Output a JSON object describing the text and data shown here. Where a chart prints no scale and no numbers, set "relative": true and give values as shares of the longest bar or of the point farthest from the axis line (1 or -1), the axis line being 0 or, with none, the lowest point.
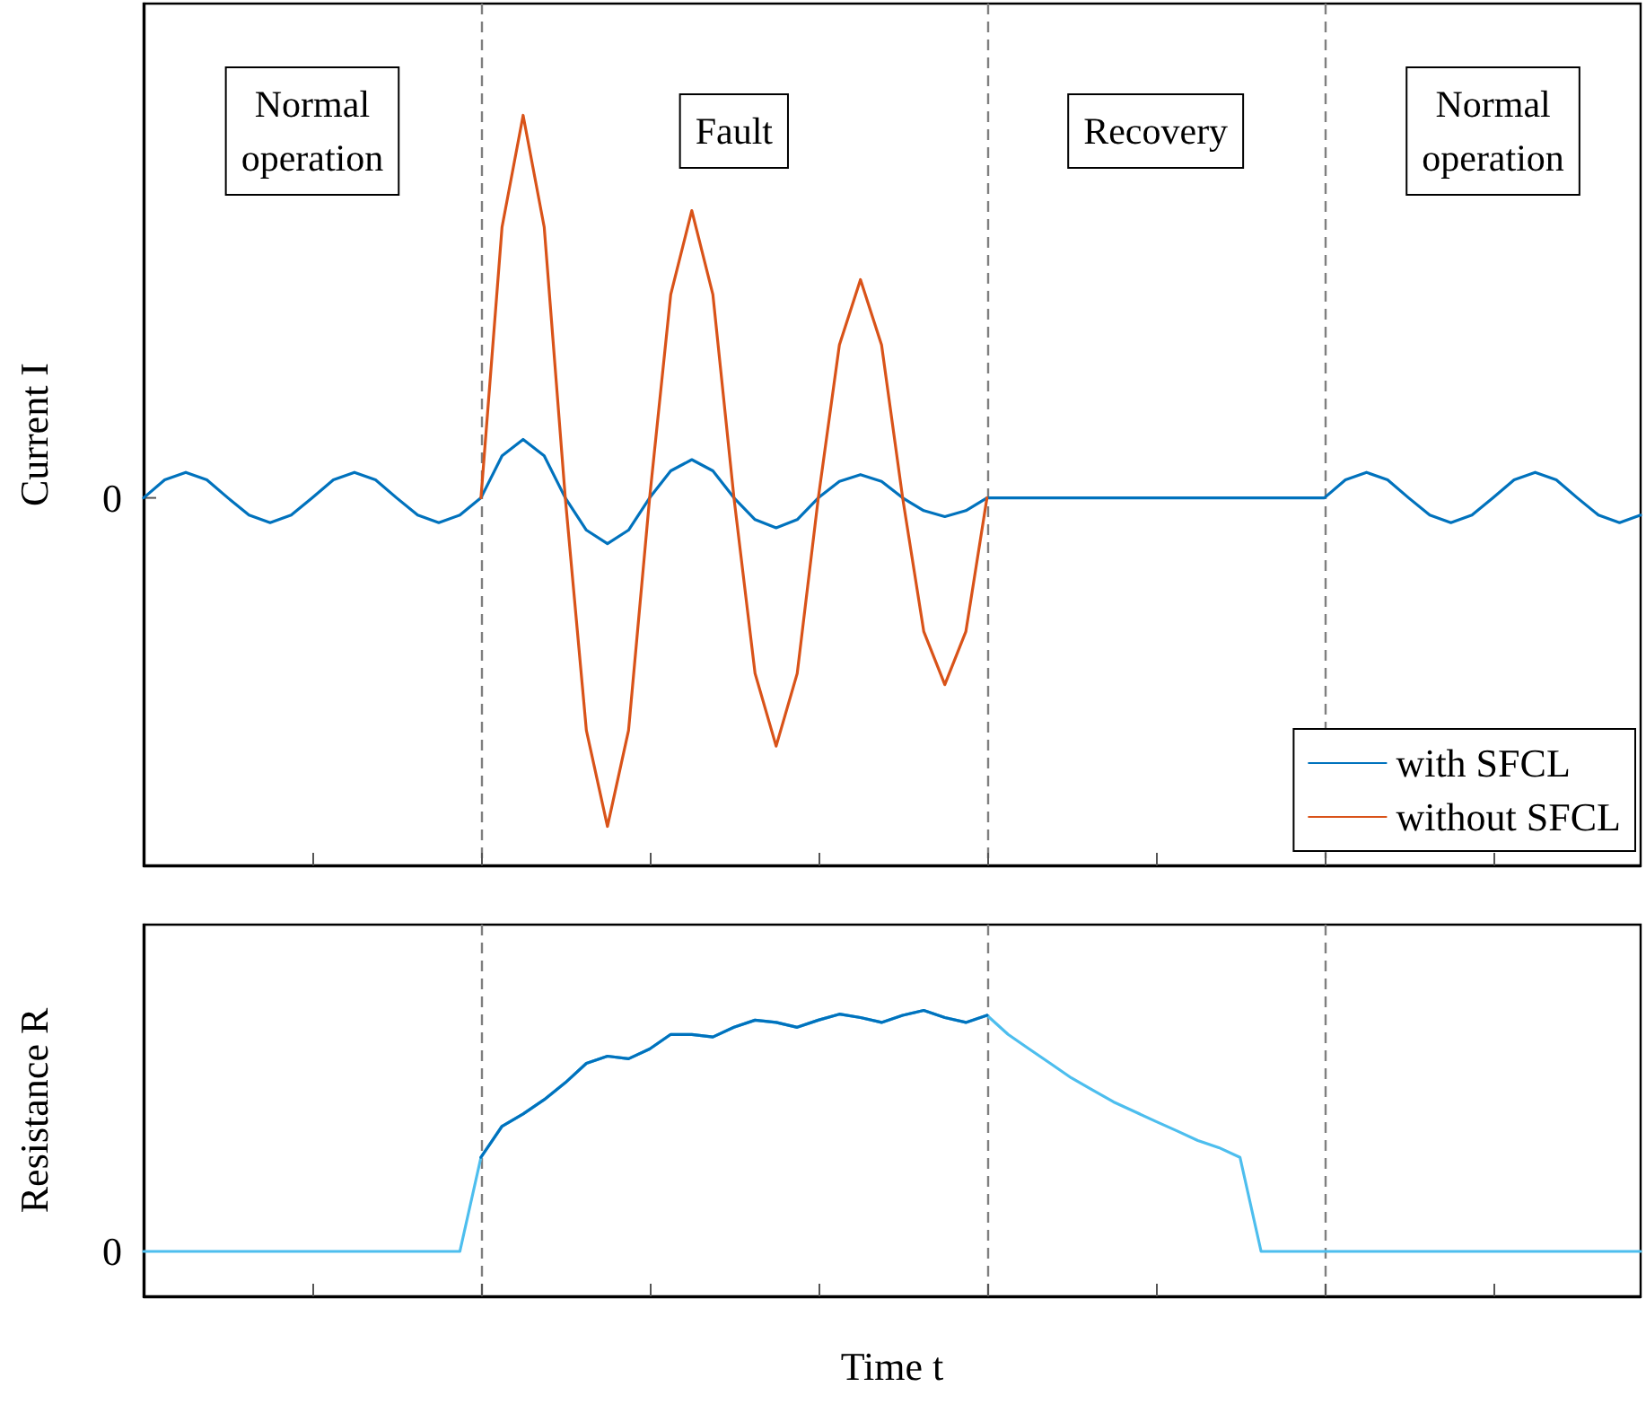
{
  "chart_data": [
    {
      "type": "line",
      "ylabel": "Current I",
      "relative": true,
      "legend": "bottom right",
      "grid": "x",
      "categories": [
        null,
        null,
        null,
        null,
        null,
        null,
        null,
        null,
        null,
        null,
        null,
        null,
        null,
        null,
        null,
        null,
        null,
        null,
        null,
        null,
        null,
        null,
        null,
        null,
        null,
        null,
        null,
        null,
        null,
        null,
        null,
        null,
        null,
        null,
        null,
        null,
        null,
        null,
        null,
        null,
        null,
        null,
        null,
        null,
        null,
        null,
        null,
        null,
        null,
        null,
        null,
        null,
        null,
        null,
        null,
        null,
        null,
        null,
        null,
        null,
        null,
        null,
        null,
        null,
        null,
        null,
        null,
        null,
        null,
        null,
        null,
        null
      ],
      "annotations": [
        "Normal\noperation",
        "Fault",
        "Recovery",
        "Normal\noperation",
        "0"
      ],
      "series": [
        {
          "name": "with SFCL",
          "color": "#0072bd",
          "values": [
            0.49,
            0.514,
            0.524,
            0.514,
            0.49,
            0.467,
            0.457,
            0.467,
            0.49,
            0.514,
            0.524,
            0.514,
            0.49,
            0.467,
            0.457,
            0.467,
            0.49,
            0.546,
            0.568,
            0.546,
            0.49,
            0.447,
            0.429,
            0.447,
            0.49,
            0.526,
            0.541,
            0.526,
            0.49,
            0.461,
            0.45,
            0.461,
            0.49,
            0.512,
            0.521,
            0.512,
            0.49,
            0.473,
            0.465,
            0.473,
            0.49,
            0.49,
            0.49,
            0.49,
            0.49,
            0.49,
            0.49,
            0.49,
            0.49,
            0.49,
            0.49,
            0.49,
            0.49,
            0.49,
            0.49,
            0.49,
            0.49,
            0.514,
            0.524,
            0.514,
            0.49,
            0.467,
            0.457,
            0.467,
            0.49,
            0.514,
            0.524,
            0.514,
            0.49,
            0.467,
            0.457,
            0.467
          ]
        },
        {
          "name": "without SFCL",
          "color": "#d95319",
          "values": [
            null,
            null,
            null,
            null,
            null,
            null,
            null,
            null,
            null,
            null,
            null,
            null,
            null,
            null,
            null,
            null,
            0.49,
            0.851,
            1,
            0.851,
            0.49,
            0.18,
            0.052,
            0.18,
            0.49,
            0.761,
            0.873,
            0.761,
            0.49,
            0.256,
            0.159,
            0.256,
            0.49,
            0.694,
            0.781,
            0.694,
            0.49,
            0.312,
            0.241,
            0.312,
            0.49,
            null,
            null,
            null,
            null,
            null,
            null,
            null,
            null,
            null,
            null,
            null,
            null,
            null,
            null,
            null,
            null,
            null,
            null,
            null,
            null,
            null,
            null,
            null,
            null,
            null,
            null,
            null,
            null,
            null,
            null,
            null
          ]
        }
      ]
    },
    {
      "type": "line",
      "ylabel": "Resistance R",
      "xlabel": "Time t",
      "relative": true,
      "grid": "x",
      "categories": [
        null,
        null,
        null,
        null,
        null,
        null,
        null,
        null,
        null,
        null,
        null,
        null,
        null,
        null,
        null,
        null,
        null,
        null,
        null,
        null,
        null,
        null,
        null,
        null,
        null,
        null,
        null,
        null,
        null,
        null,
        null,
        null,
        null,
        null,
        null,
        null,
        null,
        null,
        null,
        null,
        null,
        null,
        null,
        null,
        null,
        null,
        null,
        null,
        null,
        null,
        null,
        null,
        null,
        null,
        null,
        null,
        null,
        null,
        null,
        null,
        null,
        null,
        null,
        null,
        null,
        null,
        null,
        null,
        null,
        null,
        null,
        null
      ],
      "annotations": [
        "0"
      ],
      "series": [
        {
          "color": "#4dbeee",
          "values": [
            0.157,
            0.157,
            0.157,
            0.157,
            0.157,
            0.157,
            0.157,
            0.157,
            0.157,
            0.157,
            0.157,
            0.157,
            0.157,
            0.157,
            0.157,
            0.157,
            0.486,
            0.595,
            0.638,
            0.688,
            0.747,
            0.815,
            0.84,
            0.831,
            0.865,
            0.916,
            0.916,
            0.907,
            0.941,
            0.966,
            0.958,
            0.941,
            0.966,
            0.987,
            0.975,
            0.958,
            0.983,
            1,
            0.975,
            0.958,
            0.983,
            0.916,
            0.865,
            0.815,
            0.764,
            0.722,
            0.68,
            0.646,
            0.612,
            0.579,
            0.545,
            0.52,
            0.486,
            0.157,
            0.157,
            0.157,
            0.157,
            0.157,
            0.157,
            0.157,
            0.157,
            0.157,
            0.157,
            0.157,
            0.157,
            0.157,
            0.157,
            0.157,
            0.157,
            0.157,
            0.157,
            0.157
          ]
        },
        {
          "color": "#0072bd",
          "values": [
            null,
            null,
            null,
            null,
            null,
            null,
            null,
            null,
            null,
            null,
            null,
            null,
            null,
            null,
            null,
            null,
            0.486,
            0.595,
            0.638,
            0.688,
            0.747,
            0.815,
            0.84,
            0.831,
            0.865,
            0.916,
            0.916,
            0.907,
            0.941,
            0.966,
            0.958,
            0.941,
            0.966,
            0.987,
            0.975,
            0.958,
            0.983,
            1,
            0.975,
            0.958,
            0.983,
            null,
            null,
            null,
            null,
            null,
            null,
            null,
            null,
            null,
            null,
            null,
            null,
            null,
            null,
            null,
            null,
            null,
            null,
            null,
            null,
            null,
            null,
            null,
            null,
            null,
            null,
            null,
            null,
            null,
            null,
            null
          ]
        }
      ]
    }
  ]
}
